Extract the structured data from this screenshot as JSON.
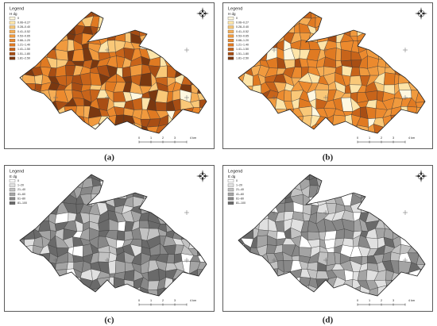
{
  "panels": [
    {
      "label": "(a)",
      "legend": {
        "title": "Legend",
        "subtitle": "H dg",
        "items": [
          "0",
          "0.06–0.27",
          "0.28–0.40",
          "0.41–0.52",
          "0.53–0.65",
          "0.66–1.20",
          "1.21–1.40",
          "1.41–1.50",
          "1.51–1.80",
          "1.81–2.50"
        ],
        "colors": [
          "#fff8e0",
          "#fde4a8",
          "#f9c878",
          "#f5ad55",
          "#f09a3e",
          "#ec8a2e",
          "#e07a22",
          "#c8641a",
          "#a84e14",
          "#7a3810"
        ]
      },
      "scale": [
        "0",
        "1",
        "2",
        "3",
        "4 km"
      ]
    },
    {
      "label": "(b)",
      "legend": {
        "title": "Legend",
        "subtitle": "H dg",
        "items": [
          "0",
          "0.06–0.27",
          "0.28–0.40",
          "0.41–0.52",
          "0.53–0.65",
          "0.66–1.20",
          "1.21–1.40",
          "1.41–1.50",
          "1.51–1.80",
          "1.81–2.50"
        ],
        "colors": [
          "#fff8e0",
          "#fde4a8",
          "#f9c878",
          "#f5ad55",
          "#f09a3e",
          "#ec8a2e",
          "#e07a22",
          "#c8641a",
          "#a84e14",
          "#7a3810"
        ]
      },
      "scale": [
        "0",
        "1",
        "2",
        "3",
        "4 km"
      ]
    },
    {
      "label": "(c)",
      "legend": {
        "title": "Legend",
        "subtitle": "E dg",
        "items": [
          "0",
          "1–20",
          "21–40",
          "41–60",
          "61–80",
          "81–100"
        ],
        "colors": [
          "#ffffff",
          "#e0e0e0",
          "#c2c2c2",
          "#a4a4a4",
          "#888888",
          "#6a6a6a"
        ]
      },
      "scale": [
        "0",
        "1",
        "2",
        "3",
        "4 km"
      ]
    },
    {
      "label": "(d)",
      "legend": {
        "title": "Legend",
        "subtitle": "E dg",
        "items": [
          "0",
          "1–20",
          "21–40",
          "41–60",
          "61–80",
          "81–100"
        ],
        "colors": [
          "#ffffff",
          "#e0e0e0",
          "#c2c2c2",
          "#a4a4a4",
          "#888888",
          "#6a6a6a"
        ]
      },
      "scale": [
        "0",
        "1",
        "2",
        "3",
        "4 km"
      ]
    }
  ]
}
